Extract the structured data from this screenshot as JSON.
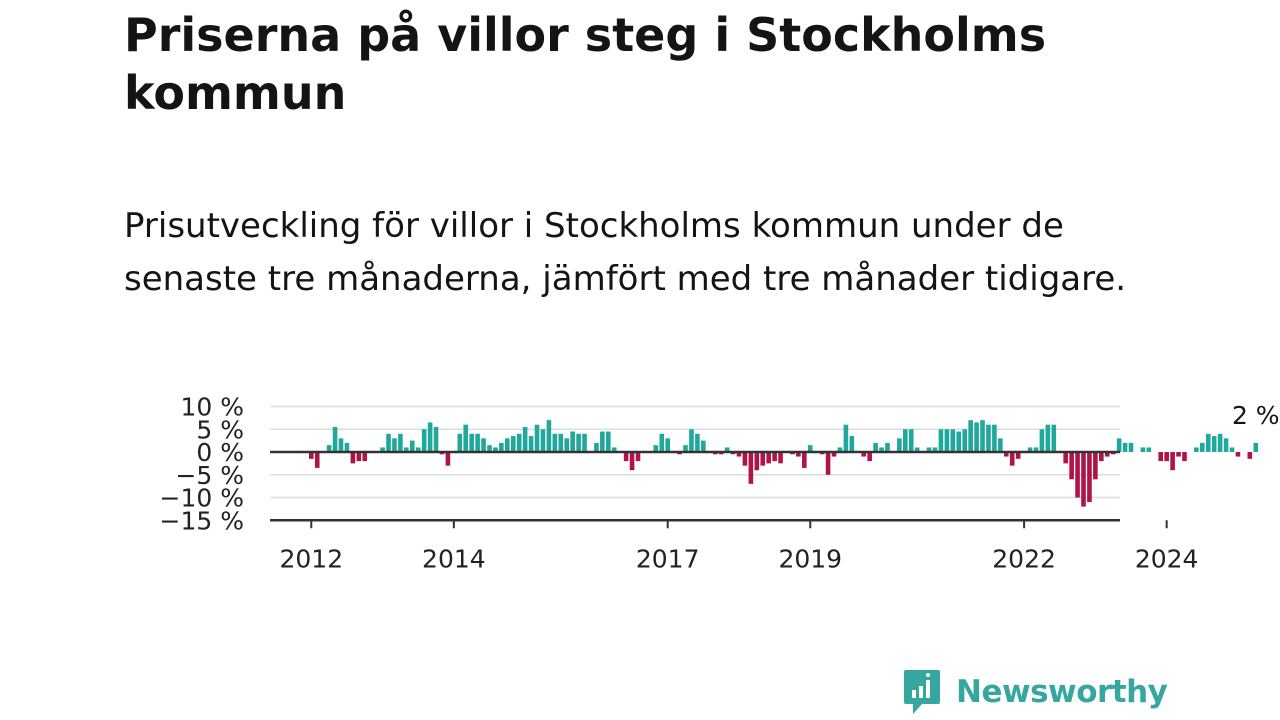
{
  "title": "Priserna på villor steg i Stockholms kommun",
  "subtitle": "Prisutveckling för villor i Stockholms kommun under de senaste tre månaderna, jämfört med tre månader tidigare.",
  "brand": {
    "name": "Newsworthy",
    "color": "#35a6a0"
  },
  "colors": {
    "positive": "#1fa89b",
    "negative": "#b0124a",
    "grid": "#dddddd",
    "axis": "#333333"
  },
  "chart_data": {
    "type": "bar",
    "x_start": "2012-01",
    "x_label_years": [
      "2012",
      "2014",
      "2017",
      "2019",
      "2022",
      "2024"
    ],
    "y_ticks": [
      10,
      5,
      0,
      -5,
      -10,
      -15
    ],
    "y_tick_labels": [
      "10 %",
      "5 %",
      "0 %",
      "−5 %",
      "−10 %",
      "−15 %"
    ],
    "ylim": [
      -15,
      10
    ],
    "annotation": "2 %",
    "grid": true,
    "values": [
      -1.5,
      -3.5,
      0,
      1.5,
      5.5,
      3,
      2,
      -2.5,
      -2,
      -2,
      0,
      0,
      1,
      4,
      3,
      4,
      1,
      2.5,
      1,
      5,
      6.5,
      5.5,
      -0.5,
      -3,
      0,
      4,
      6,
      4,
      4,
      3,
      1.5,
      1,
      2,
      3,
      3.5,
      4,
      5.5,
      3.5,
      6,
      5,
      7,
      4,
      4,
      3,
      4.5,
      4,
      4,
      0,
      2,
      4.5,
      4.5,
      1,
      0,
      -2,
      -4,
      -2,
      0,
      0,
      1.5,
      4,
      3,
      0,
      -0.5,
      1.5,
      5,
      4,
      2.5,
      0,
      -0.5,
      -0.5,
      1,
      -0.5,
      -1,
      -3,
      -7,
      -4,
      -3,
      -2.5,
      -2,
      -2.5,
      0,
      -0.5,
      -1,
      -3.5,
      1.5,
      0,
      -0.5,
      -5,
      -1,
      1,
      6,
      3.5,
      0,
      -1,
      -2,
      2,
      1,
      2,
      0,
      3,
      5,
      5,
      1,
      0,
      1,
      1,
      5,
      5,
      5,
      4.5,
      5,
      7,
      6.5,
      7,
      6,
      6,
      3,
      -1,
      -3,
      -1.5,
      0,
      1,
      1,
      5,
      6,
      6,
      0,
      -2.5,
      -6,
      -10,
      -12,
      -11,
      -6,
      -2,
      -1,
      -0.5,
      3,
      2,
      2,
      0,
      1,
      1,
      0,
      -2,
      -2,
      -4,
      -1,
      -2,
      0,
      1,
      2,
      4,
      3.5,
      4,
      3,
      1,
      -1,
      0,
      -1.5,
      2
    ]
  }
}
